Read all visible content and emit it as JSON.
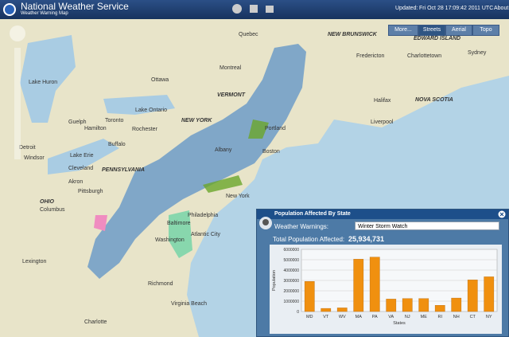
{
  "header": {
    "title": "National Weather Service",
    "subtitle": "Weather Warning Map",
    "updated": "Updated:",
    "timestamp": "Fri Oct 28 17:09:42 2011 UTC",
    "about": "About"
  },
  "map_buttons": [
    "More...",
    "Streets",
    "Aerial",
    "Topo"
  ],
  "map_labels": [
    "Quebec",
    "Montreal",
    "Ottawa",
    "Toronto",
    "Rochester",
    "Buffalo",
    "Albany",
    "NEW YORK",
    "VERMONT",
    "Boston",
    "Portland",
    "New York",
    "Philadelphia",
    "PENNSYLVANIA",
    "Pittsburgh",
    "Detroit",
    "Cleveland",
    "Lake Erie",
    "Lake Ontario",
    "Lake Huron",
    "OHIO",
    "Columbus",
    "Washington",
    "Baltimore",
    "Richmond",
    "Virginia Beach",
    "Atlantic City",
    "Halifax",
    "NOVA SCOTIA",
    "Fredericton",
    "Charlottetown",
    "NEW BRUNSWICK",
    "EDWARD ISLAND",
    "Liverpool",
    "Sydney",
    "Guelph",
    "Hamilton",
    "Windsor",
    "Akron",
    "Charlotte",
    "Lexington"
  ],
  "panel": {
    "title": "Population Affected By State",
    "warnings_label": "Weather Warnings:",
    "warning_selected": "Winter Storm Watch",
    "total_label": "Total Population Affected:",
    "total_value": "25,934,731"
  },
  "chart_data": {
    "type": "bar",
    "x_label": "States",
    "y_label": "Population",
    "categories": [
      "MD",
      "VT",
      "WV",
      "MA",
      "PA",
      "VA",
      "NJ",
      "ME",
      "RI",
      "NH",
      "CT",
      "NY"
    ],
    "values": [
      2900000,
      300000,
      350000,
      5050000,
      5250000,
      1200000,
      1250000,
      1250000,
      600000,
      1300000,
      3050000,
      3350000
    ],
    "color": "#f0900f",
    "ylim": [
      0,
      6000000
    ],
    "yticks": [
      0,
      1000000,
      2000000,
      3000000,
      4000000,
      5000000,
      6000000
    ],
    "grid": true
  }
}
